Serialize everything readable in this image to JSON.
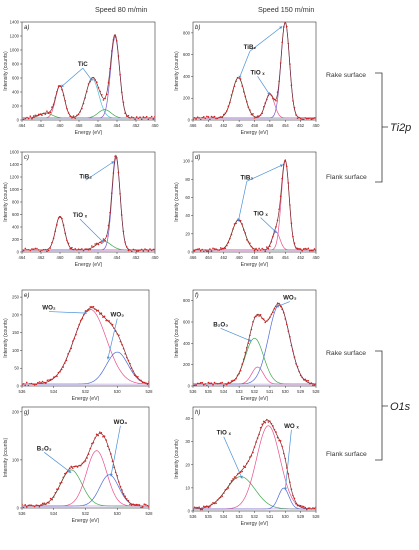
{
  "figure": {
    "header_left": "Speed 80 m/min",
    "header_right": "Speed 150 m/min",
    "rake_surface": "Rake surface",
    "flank_surface": "Flank surface",
    "group_ti": "Ti2p",
    "group_o": "O1s"
  },
  "chart_data": [
    {
      "id": "a",
      "type": "line",
      "panel_label": "a)",
      "xlabel": "Energy (eV)",
      "ylabel": "Intensity (counts)",
      "xlim": [
        464,
        450
      ],
      "ylim": [
        0,
        1400
      ],
      "xticks": [
        464,
        462,
        460,
        458,
        456,
        454,
        452,
        450
      ],
      "yticks": [
        0,
        200,
        400,
        600,
        800,
        1000,
        1200,
        1400
      ],
      "peaks": [
        {
          "center": 460.0,
          "height": 460,
          "fwhm": 1.1,
          "color": "#e8508c"
        },
        {
          "center": 461.5,
          "height": 70,
          "fwhm": 1.6,
          "color": "#3fa84f"
        },
        {
          "center": 456.6,
          "height": 560,
          "fwhm": 1.6,
          "color": "#4fc3d9"
        },
        {
          "center": 454.2,
          "height": 1160,
          "fwhm": 1.1,
          "color": "#7a57c8"
        },
        {
          "center": 455.3,
          "height": 120,
          "fwhm": 1.6,
          "color": "#3fa84f"
        }
      ],
      "annotations": [
        {
          "text": "TiC",
          "x": 457.6,
          "y": 770
        }
      ]
    },
    {
      "id": "b",
      "type": "line",
      "panel_label": "b)",
      "xlabel": "Energy (eV)",
      "ylabel": "Intensity (counts)",
      "xlim": [
        466,
        450
      ],
      "ylim": [
        0,
        900
      ],
      "xticks": [
        466,
        464,
        462,
        460,
        458,
        456,
        454,
        452,
        450
      ],
      "yticks": [
        0,
        200,
        400,
        600,
        800
      ],
      "peaks": [
        {
          "center": 460.1,
          "height": 370,
          "fwhm": 1.9,
          "color": "#3fa84f"
        },
        {
          "center": 456.0,
          "height": 220,
          "fwhm": 1.4,
          "color": "#e8508c"
        },
        {
          "center": 454.0,
          "height": 880,
          "fwhm": 1.3,
          "color": "#7a57c8"
        }
      ],
      "annotations": [
        {
          "text": "TiB₂",
          "x": 458.6,
          "y": 650
        },
        {
          "text": "TiO ₓ",
          "x": 457.6,
          "y": 420
        }
      ]
    },
    {
      "id": "c",
      "type": "line",
      "panel_label": "c)",
      "xlabel": "Energy (eV)",
      "ylabel": "Intensity (counts)",
      "xlim": [
        464,
        450
      ],
      "ylim": [
        0,
        1600
      ],
      "xticks": [
        464,
        462,
        460,
        458,
        456,
        454,
        452,
        450
      ],
      "yticks": [
        0,
        200,
        400,
        600,
        800,
        1000,
        1200,
        1400,
        1600
      ],
      "peaks": [
        {
          "center": 460.0,
          "height": 540,
          "fwhm": 1.1,
          "color": "#e8508c"
        },
        {
          "center": 455.4,
          "height": 140,
          "fwhm": 1.8,
          "color": "#3fa84f"
        },
        {
          "center": 454.1,
          "height": 1480,
          "fwhm": 1.0,
          "color": "#7a57c8"
        }
      ],
      "annotations": [
        {
          "text": "TiB₂",
          "x": 457.3,
          "y": 1180
        },
        {
          "text": "TiO ₓ",
          "x": 457.9,
          "y": 560
        }
      ]
    },
    {
      "id": "d",
      "type": "line",
      "panel_label": "d)",
      "xlabel": "Energy (eV)",
      "ylabel": "Intensity (counts)",
      "xlim": [
        466,
        450
      ],
      "ylim": [
        0,
        110
      ],
      "xticks": [
        466,
        464,
        462,
        460,
        458,
        456,
        454,
        452,
        450
      ],
      "yticks": [
        0,
        20,
        40,
        60,
        80,
        100
      ],
      "peaks": [
        {
          "center": 460.1,
          "height": 33,
          "fwhm": 1.9,
          "color": "#3fa84f"
        },
        {
          "center": 455.2,
          "height": 20,
          "fwhm": 1.2,
          "color": "#e8508c"
        },
        {
          "center": 454.0,
          "height": 98,
          "fwhm": 1.2,
          "color": "#e8508c"
        }
      ],
      "annotations": [
        {
          "text": "TiB₂",
          "x": 459.0,
          "y": 80
        },
        {
          "text": "TiO ₓ",
          "x": 457.2,
          "y": 40
        }
      ]
    },
    {
      "id": "e",
      "type": "line",
      "panel_label": "e)",
      "xlabel": "Energy (eV)",
      "ylabel": "Intensity (counts)",
      "xlim": [
        536,
        528
      ],
      "ylim": [
        0,
        270
      ],
      "xticks": [
        536,
        534,
        532,
        530,
        528
      ],
      "yticks": [
        0,
        50,
        100,
        150,
        200,
        250
      ],
      "peaks": [
        {
          "center": 531.7,
          "height": 210,
          "fwhm": 2.4,
          "color": "#e8508c"
        },
        {
          "center": 530.0,
          "height": 90,
          "fwhm": 1.6,
          "color": "#4f6bd8"
        }
      ],
      "annotations": [
        {
          "text": "WO₂",
          "x": 534.3,
          "y": 215
        },
        {
          "text": "WO₃",
          "x": 530.0,
          "y": 195
        }
      ]
    },
    {
      "id": "f",
      "type": "line",
      "panel_label": "f)",
      "xlabel": "Energy (eV)",
      "ylabel": "Intensity (counts)",
      "xlim": [
        536,
        528
      ],
      "ylim": [
        0,
        900
      ],
      "xticks": [
        536,
        535,
        534,
        533,
        532,
        531,
        530,
        529,
        528
      ],
      "yticks": [
        0,
        200,
        400,
        600,
        800
      ],
      "peaks": [
        {
          "center": 532.0,
          "height": 430,
          "fwhm": 1.4,
          "color": "#3fa84f"
        },
        {
          "center": 531.8,
          "height": 160,
          "fwhm": 0.9,
          "color": "#e8508c"
        },
        {
          "center": 530.4,
          "height": 740,
          "fwhm": 1.6,
          "color": "#4f6bd8"
        }
      ],
      "annotations": [
        {
          "text": "B₂O₃",
          "x": 534.2,
          "y": 560
        },
        {
          "text": "WO₃",
          "x": 529.7,
          "y": 810
        }
      ]
    },
    {
      "id": "g",
      "type": "line",
      "panel_label": "g)",
      "xlabel": "Energy (eV)",
      "ylabel": "Intensity (counts)",
      "xlim": [
        536,
        528
      ],
      "ylim": [
        0,
        210
      ],
      "xticks": [
        536,
        534,
        532,
        530,
        528
      ],
      "yticks": [
        0,
        100,
        200
      ],
      "peaks": [
        {
          "center": 532.9,
          "height": 75,
          "fwhm": 1.6,
          "color": "#3fa84f"
        },
        {
          "center": 531.3,
          "height": 115,
          "fwhm": 1.5,
          "color": "#e8508c"
        },
        {
          "center": 530.5,
          "height": 65,
          "fwhm": 1.4,
          "color": "#4f6bd8"
        }
      ],
      "annotations": [
        {
          "text": "B₂O₃",
          "x": 534.6,
          "y": 120
        },
        {
          "text": "WO₃",
          "x": 529.8,
          "y": 175
        }
      ]
    },
    {
      "id": "h",
      "type": "line",
      "panel_label": "h)",
      "xlabel": "Energy (eV)",
      "ylabel": "Intensity (counts)",
      "xlim": [
        536,
        528
      ],
      "ylim": [
        0,
        45
      ],
      "xticks": [
        536,
        535,
        534,
        533,
        532,
        531,
        530,
        529,
        528
      ],
      "yticks": [
        0,
        10,
        20,
        30,
        40
      ],
      "peaks": [
        {
          "center": 532.9,
          "height": 14,
          "fwhm": 2.2,
          "color": "#3fa84f"
        },
        {
          "center": 531.1,
          "height": 36,
          "fwhm": 1.8,
          "color": "#e8508c"
        },
        {
          "center": 530.1,
          "height": 9,
          "fwhm": 0.8,
          "color": "#4f6bd8"
        }
      ],
      "annotations": [
        {
          "text": "TiO ₓ",
          "x": 534.0,
          "y": 33
        },
        {
          "text": "WO ₓ",
          "x": 529.6,
          "y": 36
        }
      ]
    }
  ]
}
